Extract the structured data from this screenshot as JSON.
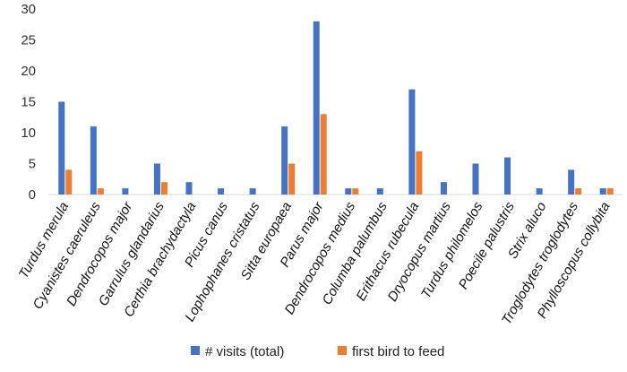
{
  "chart_data": {
    "type": "bar",
    "title": "",
    "xlabel": "",
    "ylabel": "",
    "ylim": [
      0,
      30
    ],
    "yticks": [
      0,
      5,
      10,
      15,
      20,
      25,
      30
    ],
    "grid": false,
    "legend_position": "bottom",
    "categories": [
      "Turdus merula",
      "Cyanistes caeruleus",
      "Dendrocopos major",
      "Garrulus glandarius",
      "Certhia brachydactyla",
      "Picus canus",
      "Lophophanes cristatus",
      "Sitta europaea",
      "Parus major",
      "Dendrocopos medius",
      "Columba palumbus",
      "Erithacus rubecula",
      "Dryocopus martius",
      "Turdus philomelos",
      "Poecile palustris",
      "Strix aluco",
      "Troglodytes troglodytes",
      "Phylloscopus collybita"
    ],
    "series": [
      {
        "name": "# visits (total)",
        "color": "#4472C4",
        "values": [
          15,
          11,
          1,
          5,
          2,
          1,
          1,
          11,
          28,
          1,
          1,
          17,
          2,
          5,
          6,
          1,
          4,
          1
        ]
      },
      {
        "name": "first bird to feed",
        "color": "#ED7D31",
        "values": [
          4,
          1,
          0,
          2,
          0,
          0,
          0,
          5,
          13,
          1,
          0,
          7,
          0,
          0,
          0,
          0,
          1,
          1
        ]
      }
    ]
  }
}
